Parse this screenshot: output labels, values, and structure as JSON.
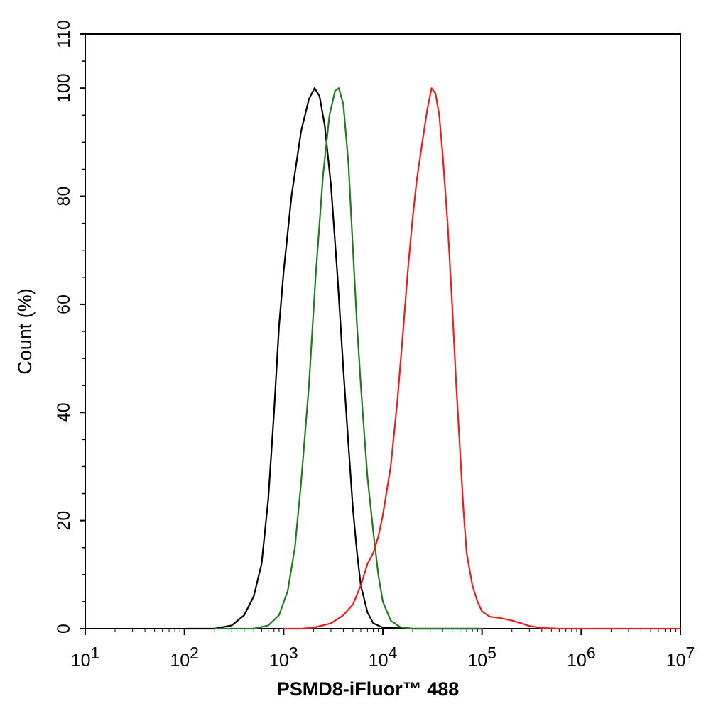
{
  "chart_data": {
    "type": "line",
    "title": "",
    "xlabel": "PSMD8-iFluor™ 488",
    "ylabel": "Count  (%)",
    "xscale": "log",
    "xlim": [
      10,
      10000000
    ],
    "ylim": [
      0,
      110
    ],
    "x_ticks": [
      {
        "base": "10",
        "exp": "1"
      },
      {
        "base": "10",
        "exp": "2"
      },
      {
        "base": "10",
        "exp": "3"
      },
      {
        "base": "10",
        "exp": "4"
      },
      {
        "base": "10",
        "exp": "5"
      },
      {
        "base": "10",
        "exp": "6"
      },
      {
        "base": "10",
        "exp": "7"
      }
    ],
    "y_ticks": [
      "0",
      "20",
      "40",
      "60",
      "80",
      "100",
      "110"
    ],
    "grid": false,
    "legend": "none",
    "series": [
      {
        "color": "#000000",
        "points": [
          [
            100,
            0
          ],
          [
            200,
            0
          ],
          [
            300,
            0.6
          ],
          [
            400,
            2.5
          ],
          [
            500,
            6
          ],
          [
            600,
            12
          ],
          [
            700,
            24
          ],
          [
            800,
            40
          ],
          [
            900,
            56
          ],
          [
            1000,
            66
          ],
          [
            1200,
            80
          ],
          [
            1500,
            92
          ],
          [
            1800,
            98
          ],
          [
            2050,
            100
          ],
          [
            2300,
            98.5
          ],
          [
            2600,
            93
          ],
          [
            3000,
            82
          ],
          [
            3500,
            65
          ],
          [
            4000,
            48
          ],
          [
            4500,
            34
          ],
          [
            5000,
            22
          ],
          [
            5500,
            14
          ],
          [
            6000,
            8
          ],
          [
            7000,
            3
          ],
          [
            8000,
            1
          ],
          [
            10000,
            0.2
          ],
          [
            20000,
            0
          ],
          [
            100000,
            0
          ]
        ]
      },
      {
        "color": "#1e7b1e",
        "points": [
          [
            200,
            0
          ],
          [
            500,
            0
          ],
          [
            700,
            0.6
          ],
          [
            900,
            2.5
          ],
          [
            1100,
            7
          ],
          [
            1300,
            15
          ],
          [
            1500,
            27
          ],
          [
            1800,
            45
          ],
          [
            2100,
            65
          ],
          [
            2500,
            84
          ],
          [
            2900,
            95
          ],
          [
            3300,
            99.5
          ],
          [
            3600,
            100
          ],
          [
            4000,
            97
          ],
          [
            4500,
            86
          ],
          [
            5000,
            70
          ],
          [
            5500,
            56
          ],
          [
            6000,
            45
          ],
          [
            6500,
            36
          ],
          [
            7000,
            28
          ],
          [
            8000,
            18
          ],
          [
            9000,
            10
          ],
          [
            10000,
            5
          ],
          [
            12000,
            1.5
          ],
          [
            15000,
            0.3
          ],
          [
            20000,
            0
          ],
          [
            100000,
            0
          ]
        ]
      },
      {
        "color": "#ee1c1c",
        "points": [
          [
            1000,
            0
          ],
          [
            1500,
            0
          ],
          [
            2000,
            0.2
          ],
          [
            3000,
            1
          ],
          [
            4000,
            2.5
          ],
          [
            5000,
            4.5
          ],
          [
            6000,
            8
          ],
          [
            7000,
            12
          ],
          [
            8000,
            14
          ],
          [
            9000,
            17
          ],
          [
            10000,
            21
          ],
          [
            12000,
            30
          ],
          [
            14000,
            42
          ],
          [
            16000,
            55
          ],
          [
            18000,
            67
          ],
          [
            20000,
            76
          ],
          [
            22000,
            83
          ],
          [
            25000,
            90
          ],
          [
            28000,
            96
          ],
          [
            31000,
            100
          ],
          [
            34000,
            99
          ],
          [
            37000,
            95
          ],
          [
            40000,
            88
          ],
          [
            45000,
            75
          ],
          [
            50000,
            60
          ],
          [
            55000,
            45
          ],
          [
            60000,
            33
          ],
          [
            65000,
            22
          ],
          [
            70000,
            14
          ],
          [
            80000,
            8
          ],
          [
            90000,
            5
          ],
          [
            100000,
            3.2
          ],
          [
            120000,
            2.2
          ],
          [
            150000,
            2
          ],
          [
            200000,
            1.5
          ],
          [
            250000,
            1
          ],
          [
            300000,
            0.5
          ],
          [
            400000,
            0.15
          ],
          [
            600000,
            0
          ],
          [
            10000000,
            0
          ]
        ]
      }
    ]
  }
}
